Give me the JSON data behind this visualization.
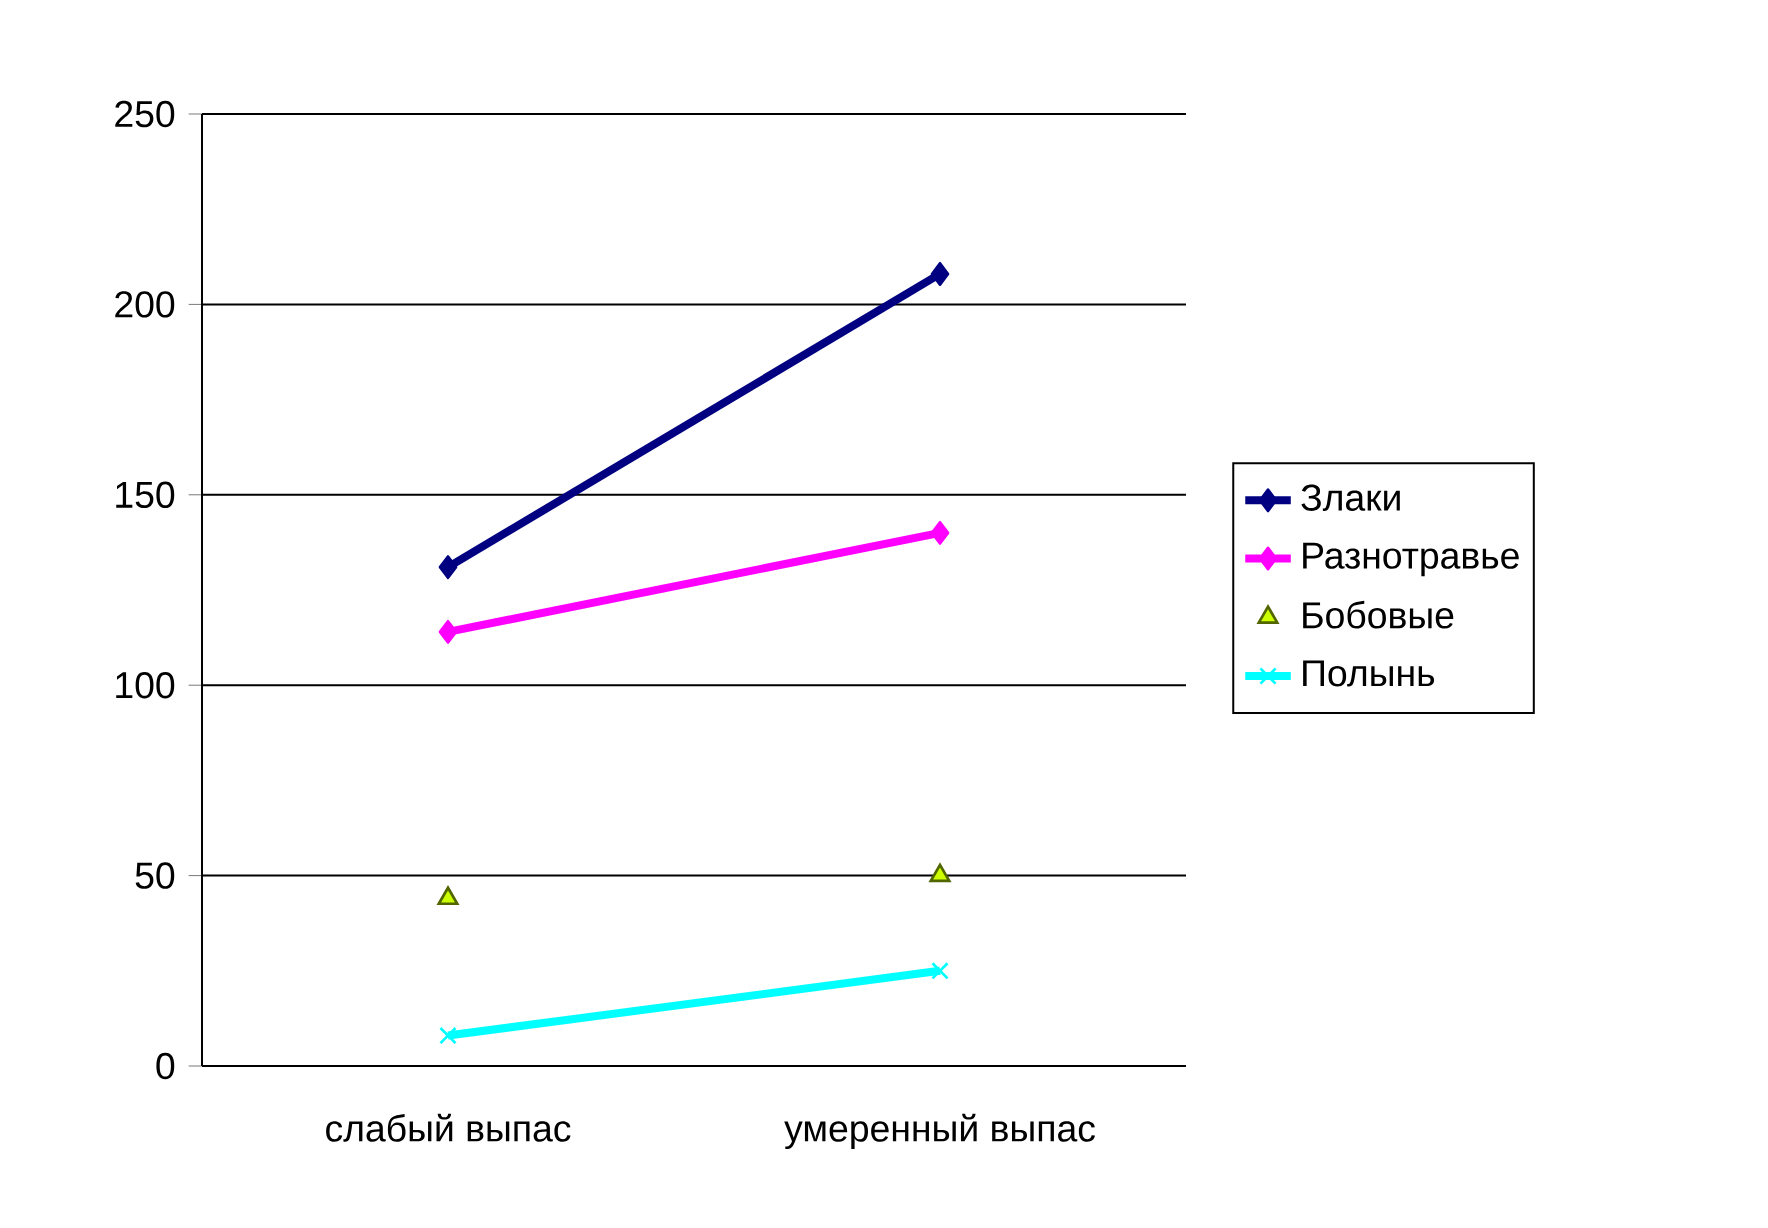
{
  "chart_data": {
    "type": "line",
    "categories": [
      "слабый выпас",
      "умеренный выпас"
    ],
    "series": [
      {
        "name": "Злаки",
        "color": "#000080",
        "values": [
          131,
          208
        ],
        "marker": "diamond"
      },
      {
        "name": "Разнотравье",
        "color": "#ff00ff",
        "values": [
          114,
          140
        ],
        "marker": "diamond"
      },
      {
        "name": "Бобовые",
        "color": "#ccff00",
        "values": [
          44,
          50
        ],
        "marker": "triangle",
        "type": "scatter"
      },
      {
        "name": "Полынь",
        "color": "#00ffff",
        "values": [
          8,
          25
        ],
        "marker": "cross"
      }
    ],
    "ylim": [
      0,
      250
    ],
    "yticks": [
      0,
      50,
      100,
      150,
      200,
      250
    ],
    "grid": "y",
    "legend": "right"
  }
}
